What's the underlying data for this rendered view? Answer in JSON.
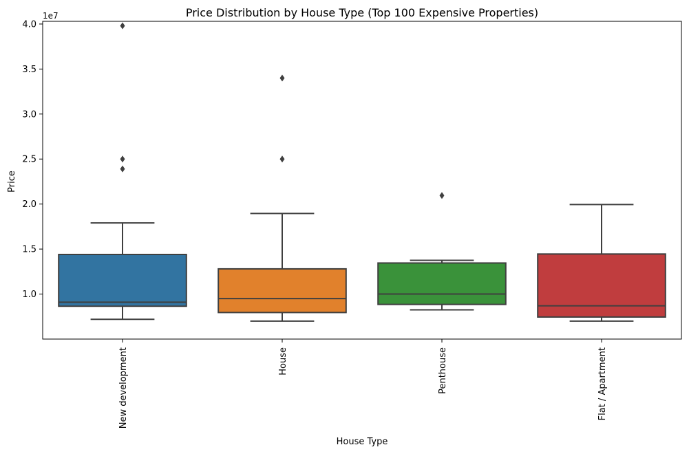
{
  "chart_data": {
    "type": "box",
    "title": "Price Distribution by House Type (Top 100 Expensive Properties)",
    "xlabel": "House Type",
    "ylabel": "Price",
    "y_offset_label": "1e7",
    "ylim": [
      5000000,
      40300000
    ],
    "y_ticks": [
      10000000,
      15000000,
      20000000,
      25000000,
      30000000,
      35000000,
      40000000
    ],
    "y_tick_labels": [
      "1.0",
      "1.5",
      "2.0",
      "2.5",
      "3.0",
      "3.5",
      "4.0"
    ],
    "categories": [
      "New development",
      "House",
      "Penthouse",
      "Flat / Apartment"
    ],
    "series": [
      {
        "category": "New development",
        "color": "#3274a1",
        "whisker_low": 7200000,
        "q1": 8650000,
        "median": 9100000,
        "q3": 14400000,
        "whisker_high": 17900000,
        "outliers": [
          39800000,
          25000000,
          23900000
        ]
      },
      {
        "category": "House",
        "color": "#e1812c",
        "whisker_low": 7000000,
        "q1": 7950000,
        "median": 9500000,
        "q3": 12800000,
        "whisker_high": 18950000,
        "outliers": [
          34000000,
          25000000
        ]
      },
      {
        "category": "Penthouse",
        "color": "#3a923a",
        "whisker_low": 8250000,
        "q1": 8850000,
        "median": 10000000,
        "q3": 13450000,
        "whisker_high": 13750000,
        "outliers": [
          20950000
        ]
      },
      {
        "category": "Flat / Apartment",
        "color": "#c03d3e",
        "whisker_low": 7000000,
        "q1": 7450000,
        "median": 8700000,
        "q3": 14450000,
        "whisker_high": 19950000,
        "outliers": []
      }
    ],
    "grid": false,
    "legend": "none"
  }
}
